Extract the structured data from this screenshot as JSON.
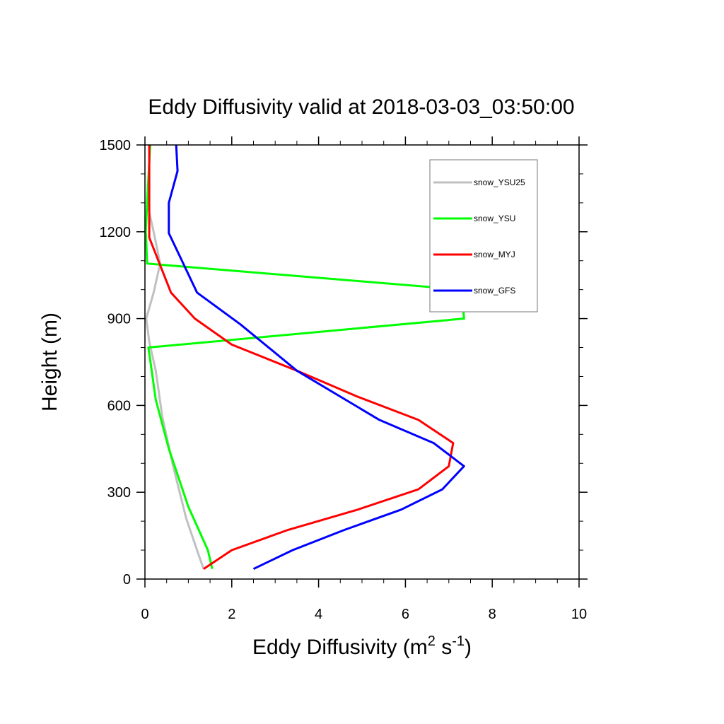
{
  "chart_data": {
    "type": "line",
    "title": "Eddy Diffusivity valid at 2018-03-03_03:50:00",
    "xlabel": {
      "main": "Eddy Diffusivity (m",
      "sup1": "2",
      "mid": " s",
      "sup2": "-1",
      "end": ")"
    },
    "ylabel": "Height (m)",
    "xlim": [
      0,
      10
    ],
    "ylim": [
      0,
      1500
    ],
    "xticks": [
      0,
      2,
      4,
      6,
      8,
      10
    ],
    "yticks": [
      0,
      300,
      600,
      900,
      1200,
      1500
    ],
    "xtick_labels": [
      "0",
      "2",
      "4",
      "6",
      "8",
      "10"
    ],
    "ytick_labels": [
      "0",
      "300",
      "600",
      "900",
      "1200",
      "1500"
    ],
    "grid": false,
    "legend_position": "top-right",
    "series": [
      {
        "name": "snow_YSU25",
        "color": "#c0c0c0",
        "x": [
          1.35,
          1.2,
          0.95,
          0.65,
          0.4,
          0.25,
          0.1,
          0.03,
          0.2,
          0.35,
          0.2,
          0.05,
          0.12
        ],
        "y": [
          35,
          100,
          210,
          390,
          560,
          720,
          820,
          900,
          990,
          1090,
          1200,
          1300,
          1500
        ]
      },
      {
        "name": "snow_YSU",
        "color": "#00ff00",
        "x": [
          1.55,
          1.45,
          1.0,
          0.55,
          0.25,
          0.08,
          7.35,
          7.3,
          0.05,
          0.02,
          0.05,
          0.12
        ],
        "y": [
          35,
          100,
          250,
          450,
          620,
          800,
          900,
          1000,
          1090,
          1200,
          1300,
          1500
        ]
      },
      {
        "name": "snow_MYJ",
        "color": "#ff0000",
        "x": [
          1.35,
          2.0,
          3.3,
          4.9,
          6.3,
          7.0,
          7.1,
          6.3,
          4.9,
          3.5,
          2.0,
          1.15,
          0.6,
          0.1,
          0.1,
          0.1
        ],
        "y": [
          35,
          100,
          170,
          240,
          310,
          390,
          470,
          550,
          630,
          720,
          810,
          900,
          990,
          1180,
          1300,
          1500
        ]
      },
      {
        "name": "snow_GFS",
        "color": "#0000ff",
        "x": [
          2.5,
          3.4,
          4.6,
          5.9,
          6.85,
          7.35,
          6.65,
          5.4,
          3.5,
          2.2,
          1.2,
          0.55,
          0.55,
          0.75,
          0.72
        ],
        "y": [
          35,
          100,
          170,
          240,
          310,
          390,
          470,
          550,
          720,
          880,
          990,
          1195,
          1300,
          1410,
          1500
        ]
      }
    ]
  }
}
